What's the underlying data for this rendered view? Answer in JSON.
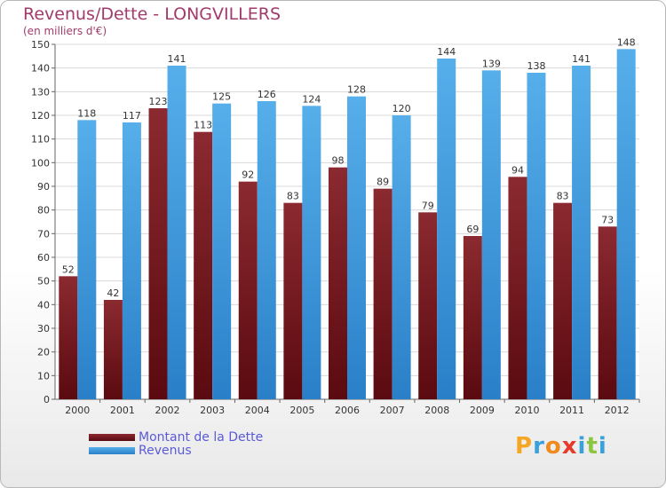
{
  "chart_data": {
    "type": "bar",
    "title": "Revenus/Dette - LONGVILLERS",
    "subtitle": "(en milliers d'€)",
    "categories": [
      "2000",
      "2001",
      "2002",
      "2003",
      "2004",
      "2005",
      "2006",
      "2007",
      "2008",
      "2009",
      "2010",
      "2011",
      "2012"
    ],
    "series": [
      {
        "name": "Montant de la Dette",
        "color": "#7b1e24",
        "values": [
          52,
          42,
          123,
          113,
          92,
          83,
          98,
          89,
          79,
          69,
          94,
          83,
          73
        ]
      },
      {
        "name": "Revenus",
        "color": "#4ea6e6",
        "values": [
          118,
          117,
          141,
          125,
          126,
          124,
          128,
          120,
          144,
          139,
          138,
          141,
          148
        ]
      }
    ],
    "ylim": [
      0,
      150
    ],
    "ytick_step": 10,
    "grid": true,
    "legend_position": "bottom-left"
  },
  "branding": {
    "logo_letters": [
      "P",
      "r",
      "o",
      "x",
      "i",
      "t",
      "i"
    ],
    "logo_colors": [
      "#f5a623",
      "#3aa0dc",
      "#f08a1c",
      "#e83a2a",
      "#3aa0dc",
      "#8cc63f",
      "#3aa0dc"
    ]
  }
}
